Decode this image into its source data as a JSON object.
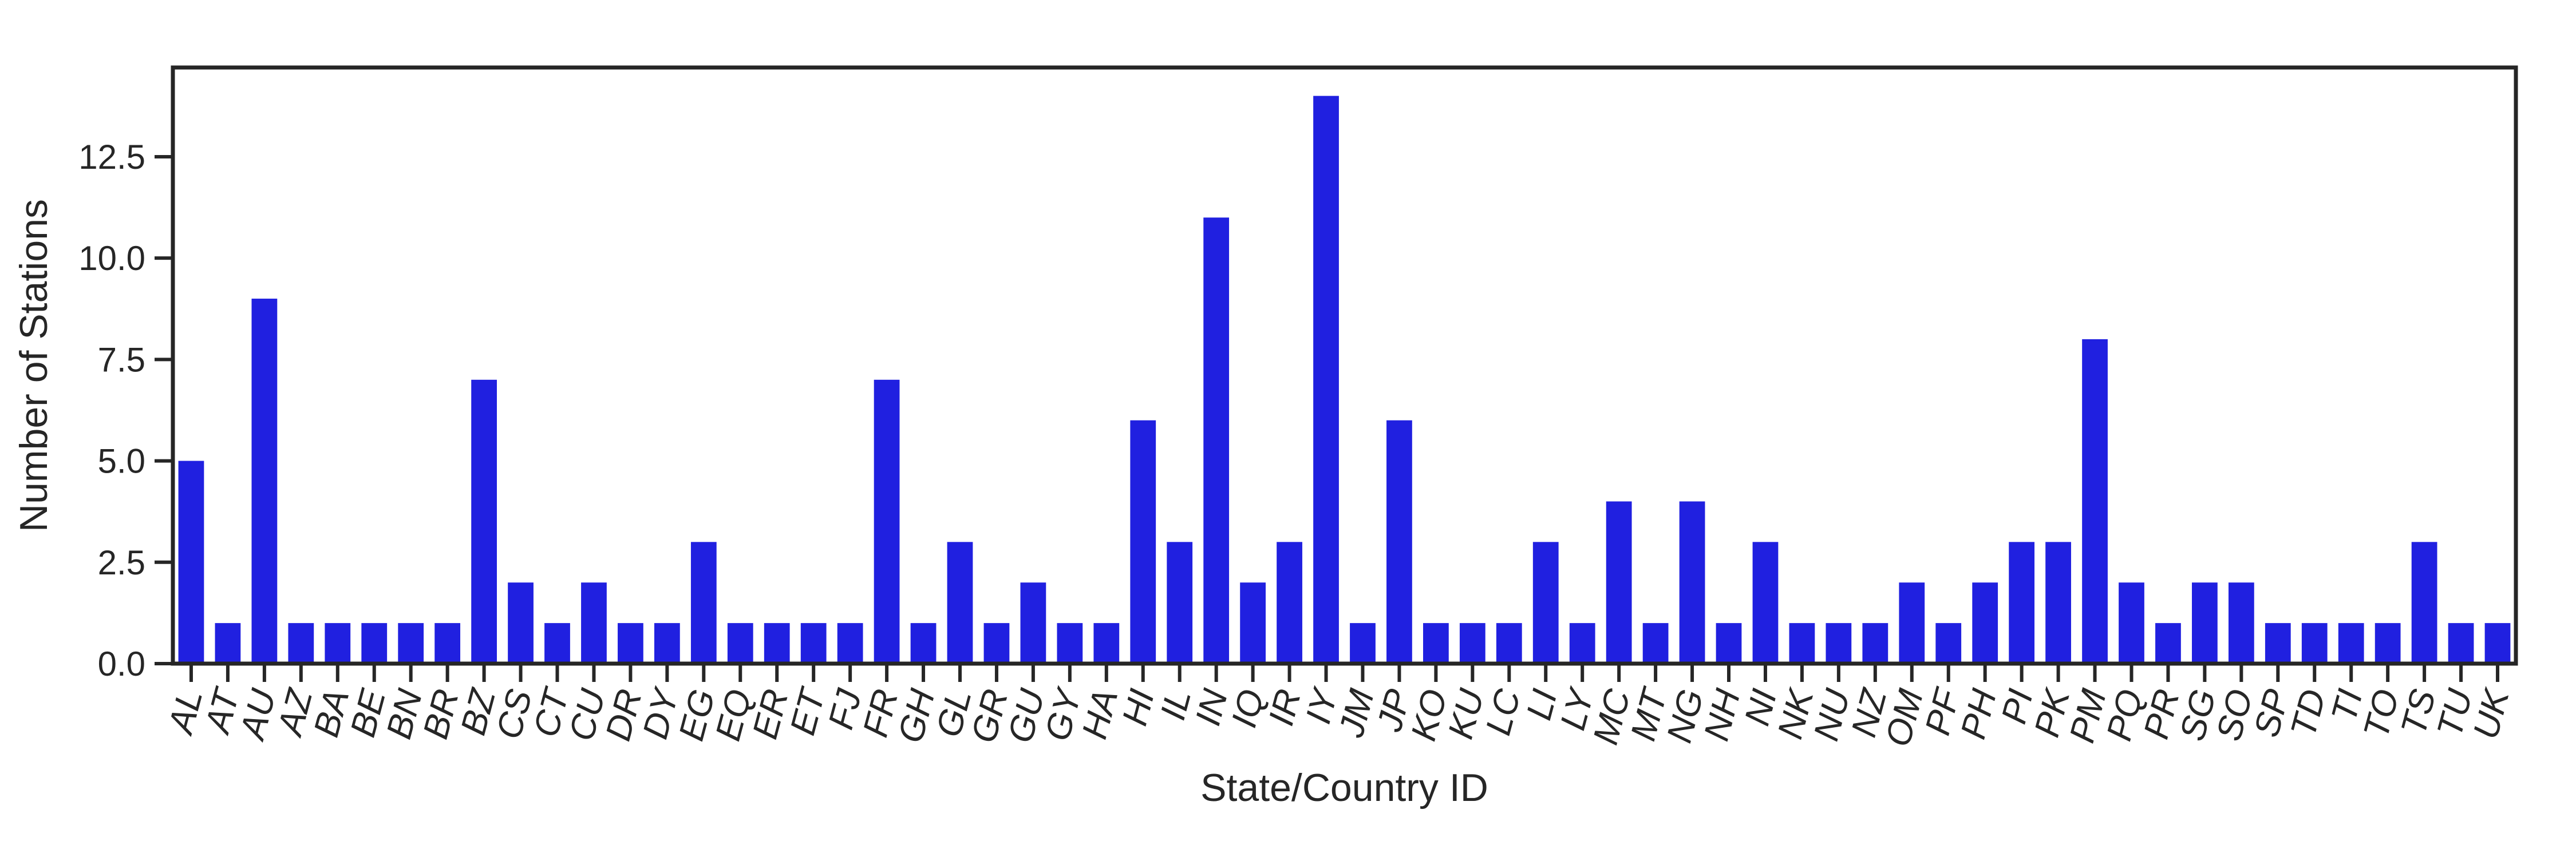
{
  "chart_data": {
    "type": "bar",
    "title": "",
    "xlabel": "State/Country ID",
    "ylabel": "Number of Stations",
    "ylim": [
      0,
      14.7
    ],
    "yticks": [
      "0.0",
      "2.5",
      "5.0",
      "7.5",
      "10.0",
      "12.5"
    ],
    "ytick_values": [
      0,
      2.5,
      5,
      7.5,
      10,
      12.5
    ],
    "grid": false,
    "legend": "none",
    "bar_color": "#2020e0",
    "axis_color": "#262626",
    "categories": [
      "AL",
      "AT",
      "AU",
      "AZ",
      "BA",
      "BE",
      "BN",
      "BR",
      "BZ",
      "CS",
      "CT",
      "CU",
      "DR",
      "DY",
      "EG",
      "EQ",
      "ER",
      "ET",
      "FJ",
      "FR",
      "GH",
      "GL",
      "GR",
      "GU",
      "GY",
      "HA",
      "HI",
      "IL",
      "IN",
      "IQ",
      "IR",
      "IY",
      "JM",
      "JP",
      "KO",
      "KU",
      "LC",
      "LI",
      "LY",
      "MC",
      "MT",
      "NG",
      "NH",
      "NI",
      "NK",
      "NU",
      "NZ",
      "OM",
      "PF",
      "PH",
      "PI",
      "PK",
      "PM",
      "PQ",
      "PR",
      "SG",
      "SO",
      "SP",
      "TD",
      "TI",
      "TO",
      "TS",
      "TU",
      "UK"
    ],
    "values": [
      5,
      1,
      9,
      1,
      1,
      1,
      1,
      1,
      7,
      2,
      1,
      2,
      1,
      1,
      3,
      1,
      1,
      1,
      1,
      7,
      1,
      3,
      1,
      2,
      1,
      1,
      6,
      3,
      11,
      2,
      3,
      14,
      1,
      6,
      1,
      1,
      1,
      3,
      1,
      4,
      1,
      4,
      1,
      3,
      1,
      1,
      1,
      2,
      1,
      2,
      3,
      3,
      8,
      2,
      1,
      2,
      2,
      1,
      1,
      1,
      1,
      3,
      1,
      1
    ]
  }
}
